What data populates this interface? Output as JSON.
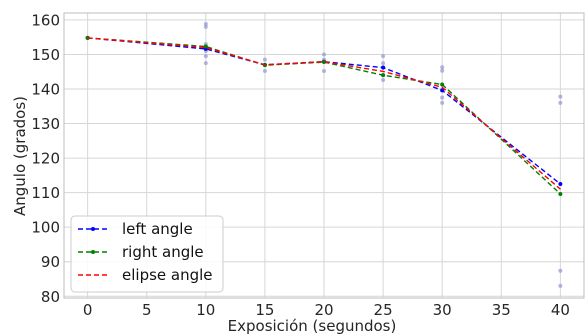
{
  "chart_data": {
    "type": "line",
    "title": "",
    "xlabel": "Exposición (segundos)",
    "ylabel": "Angulo (grados)",
    "xlim": [
      -2,
      42
    ],
    "ylim": [
      79.5,
      162
    ],
    "xticks": [
      0,
      5,
      10,
      15,
      20,
      25,
      30,
      35,
      40
    ],
    "yticks": [
      80,
      90,
      100,
      110,
      120,
      130,
      140,
      150,
      160
    ],
    "grid": true,
    "legend_position": "bottom-left",
    "series": [
      {
        "name": "left angle",
        "color": "#0000ff",
        "style": "dashed",
        "marker": "dot",
        "x": [
          0,
          10,
          15,
          20,
          25,
          30,
          40
        ],
        "y": [
          154.8,
          151.6,
          147.0,
          147.9,
          146.2,
          139.6,
          112.5
        ]
      },
      {
        "name": "right angle",
        "color": "#008000",
        "style": "dashed",
        "marker": "dot",
        "x": [
          0,
          10,
          15,
          20,
          25,
          30,
          40
        ],
        "y": [
          154.8,
          152.3,
          146.9,
          147.8,
          144.0,
          141.3,
          109.6
        ]
      },
      {
        "name": "elipse angle",
        "color": "#ff0000",
        "style": "dashed",
        "marker": "none",
        "x": [
          0,
          10,
          15,
          20,
          25,
          30,
          40
        ],
        "y": [
          154.8,
          152.0,
          147.0,
          147.9,
          145.1,
          140.5,
          111.0
        ]
      }
    ],
    "scatter_points": {
      "color": "#8a8fd0",
      "points": [
        [
          10,
          158.8
        ],
        [
          10,
          158.0
        ],
        [
          10,
          153.0
        ],
        [
          10,
          151.0
        ],
        [
          10,
          149.5
        ],
        [
          10,
          147.5
        ],
        [
          15,
          148.5
        ],
        [
          15,
          147.0
        ],
        [
          15,
          145.2
        ],
        [
          20,
          150.0
        ],
        [
          20,
          148.5
        ],
        [
          20,
          145.2
        ],
        [
          25,
          149.5
        ],
        [
          25,
          147.5
        ],
        [
          25,
          146.3
        ],
        [
          25,
          144.0
        ],
        [
          25,
          142.6
        ],
        [
          30,
          146.3
        ],
        [
          30,
          145.3
        ],
        [
          30,
          139.8
        ],
        [
          30,
          137.5
        ],
        [
          30,
          136.0
        ],
        [
          40,
          137.8
        ],
        [
          40,
          136.0
        ],
        [
          40,
          87.4
        ],
        [
          40,
          83.0
        ]
      ]
    }
  }
}
